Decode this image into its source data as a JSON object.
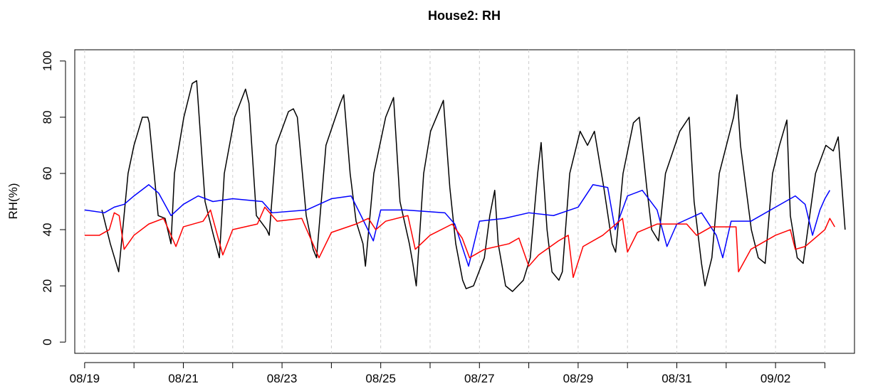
{
  "chart_data": {
    "type": "line",
    "title": "House2: RH",
    "y_label": "RH(%)",
    "xlim": [
      -0.2,
      15.6
    ],
    "ylim": [
      -4,
      104
    ],
    "yticks": [
      0,
      20,
      40,
      60,
      80,
      100
    ],
    "xticks": [
      {
        "value": 0,
        "label": "08/19"
      },
      {
        "value": 1,
        "label": null
      },
      {
        "value": 2,
        "label": "08/21"
      },
      {
        "value": 3,
        "label": null
      },
      {
        "value": 4,
        "label": "08/23"
      },
      {
        "value": 5,
        "label": null
      },
      {
        "value": 6,
        "label": "08/25"
      },
      {
        "value": 7,
        "label": null
      },
      {
        "value": 8,
        "label": "08/27"
      },
      {
        "value": 9,
        "label": null
      },
      {
        "value": 10,
        "label": "08/29"
      },
      {
        "value": 11,
        "label": null
      },
      {
        "value": 12,
        "label": "08/31"
      },
      {
        "value": 13,
        "label": null
      },
      {
        "value": 14,
        "label": "09/02"
      },
      {
        "value": 15,
        "label": null
      }
    ],
    "x_grid": true,
    "series": [
      {
        "color": "#000000",
        "x": [
          0.35,
          0.52,
          0.69,
          0.88,
          1.0,
          1.17,
          1.28,
          1.31,
          1.49,
          1.63,
          1.75,
          1.82,
          2.01,
          2.18,
          2.27,
          2.44,
          2.61,
          2.73,
          2.83,
          3.04,
          3.26,
          3.33,
          3.48,
          3.69,
          3.74,
          3.88,
          4.13,
          4.23,
          4.31,
          4.49,
          4.63,
          4.7,
          4.89,
          5.18,
          5.25,
          5.38,
          5.5,
          5.64,
          5.69,
          5.86,
          6.1,
          6.26,
          6.39,
          6.58,
          6.65,
          6.72,
          6.87,
          7.01,
          7.2,
          7.27,
          7.4,
          7.52,
          7.66,
          7.73,
          7.88,
          8.1,
          8.21,
          8.31,
          8.38,
          8.53,
          8.67,
          8.89,
          9.03,
          9.18,
          9.25,
          9.37,
          9.47,
          9.61,
          9.68,
          9.83,
          10.04,
          10.19,
          10.33,
          10.52,
          10.69,
          10.76,
          10.91,
          11.12,
          11.24,
          11.39,
          11.49,
          11.63,
          11.77,
          12.06,
          12.25,
          12.35,
          12.5,
          12.57,
          12.71,
          12.86,
          13.15,
          13.22,
          13.29,
          13.51,
          13.65,
          13.79,
          13.94,
          14.08,
          14.23,
          14.3,
          14.44,
          14.56,
          14.81,
          15.02,
          15.17,
          15.27,
          15.41
        ],
        "values": [
          47,
          35,
          25,
          60,
          70,
          80,
          80,
          78,
          45,
          44,
          35,
          60,
          80,
          92,
          93,
          50,
          38,
          30,
          60,
          80,
          90,
          85,
          45,
          40,
          38,
          70,
          82,
          83,
          80,
          45,
          33,
          30,
          70,
          85,
          88,
          60,
          43,
          35,
          27,
          60,
          80,
          87,
          50,
          35,
          28,
          20,
          60,
          75,
          83,
          86,
          55,
          35,
          22,
          19,
          20,
          30,
          45,
          54,
          35,
          20,
          18,
          22,
          30,
          60,
          71,
          40,
          25,
          22,
          25,
          60,
          75,
          70,
          75,
          55,
          35,
          32,
          60,
          78,
          80,
          55,
          40,
          36,
          60,
          75,
          80,
          50,
          28,
          20,
          30,
          60,
          80,
          88,
          70,
          40,
          30,
          28,
          60,
          70,
          79,
          45,
          30,
          28,
          60,
          70,
          68,
          73,
          40
        ]
      },
      {
        "color": "#0000ff",
        "x": [
          0,
          0.4,
          0.6,
          0.8,
          1.0,
          1.3,
          1.5,
          1.75,
          2.0,
          2.3,
          2.6,
          3.0,
          3.6,
          3.8,
          4.5,
          5.0,
          5.4,
          5.6,
          5.85,
          6.0,
          6.5,
          7.3,
          7.5,
          7.78,
          8.0,
          8.5,
          9.0,
          9.5,
          10.0,
          10.3,
          10.6,
          10.75,
          11.0,
          11.3,
          11.6,
          11.8,
          12.0,
          12.5,
          12.8,
          12.93,
          13.1,
          13.5,
          14.0,
          14.4,
          14.6,
          14.75,
          14.9,
          15.0,
          15.1
        ],
        "values": [
          47,
          46,
          48,
          49,
          52,
          56,
          53,
          45,
          49,
          52,
          50,
          51,
          50,
          46,
          47,
          51,
          52,
          45,
          36,
          47,
          47,
          46,
          42,
          27,
          43,
          44,
          46,
          45,
          48,
          56,
          55,
          40,
          52,
          54,
          47,
          34,
          42,
          46,
          38,
          30,
          43,
          43,
          48,
          52,
          49,
          38,
          47,
          51,
          54
        ]
      },
      {
        "color": "#ff0000",
        "x": [
          0,
          0.3,
          0.5,
          0.6,
          0.7,
          0.8,
          1.0,
          1.3,
          1.6,
          1.85,
          2.0,
          2.4,
          2.55,
          2.8,
          3.0,
          3.5,
          3.65,
          3.9,
          4.4,
          4.75,
          5.0,
          5.5,
          5.75,
          5.9,
          6.1,
          6.55,
          6.7,
          7.0,
          7.45,
          7.65,
          7.8,
          8.1,
          8.6,
          8.8,
          9.0,
          9.2,
          9.6,
          9.8,
          9.9,
          10.1,
          10.5,
          10.9,
          11.0,
          11.2,
          11.6,
          12.2,
          12.4,
          12.7,
          13.2,
          13.25,
          13.5,
          14.0,
          14.3,
          14.4,
          14.6,
          15.0,
          15.1,
          15.2
        ],
        "values": [
          38,
          38,
          40,
          46,
          45,
          33,
          38,
          42,
          44,
          34,
          41,
          43,
          47,
          31,
          40,
          42,
          48,
          43,
          44,
          30,
          39,
          42,
          44,
          40,
          43,
          45,
          33,
          38,
          42,
          37,
          30,
          33,
          35,
          37,
          27,
          31,
          36,
          38,
          23,
          34,
          38,
          44,
          32,
          39,
          42,
          42,
          38,
          41,
          41,
          25,
          33,
          38,
          40,
          33,
          34,
          40,
          44,
          41
        ]
      }
    ]
  }
}
